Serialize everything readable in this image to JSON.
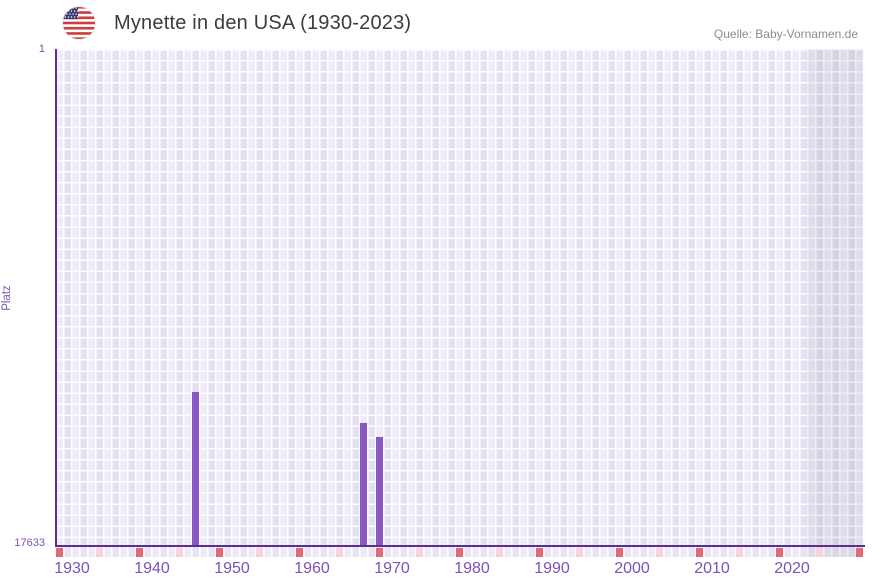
{
  "header": {
    "title": "Mynette in den USA (1930-2023)",
    "source": "Quelle: Baby-Vornamen.de",
    "flag_icon": "us-flag-icon"
  },
  "chart_data": {
    "type": "bar",
    "title": "Mynette in den USA (1930-2023)",
    "ylabel": "Platz",
    "y_axis": {
      "top_label": "1",
      "bottom_label": "17633",
      "min": 1,
      "max": 17633,
      "inverted": true
    },
    "x_axis": {
      "start_year": 1930,
      "end_year": 2030,
      "data_end_year": 2023,
      "tick_years": [
        1930,
        1940,
        1950,
        1960,
        1970,
        1980,
        1990,
        2000,
        2010,
        2020
      ],
      "minor_tick_years": [
        1935,
        1945,
        1955,
        1965,
        1975,
        1985,
        1995,
        2005,
        2015,
        2025
      ],
      "extra_major_tick_years": [
        2030
      ],
      "future_shade_start_year": 2024
    },
    "bars": [
      {
        "year": 1947,
        "platz": 12200
      },
      {
        "year": 1968,
        "platz": 13300
      },
      {
        "year": 1970,
        "platz": 13800
      }
    ],
    "legend": null,
    "grid": "cell-grid",
    "colors": {
      "bar": "#8a56c2",
      "axis": "#5b2d8e",
      "tick_label": "#7b52b8",
      "major_tick": "#e0697a",
      "minor_tick": "#f5d3dd",
      "grid_cell_a": "#efebf9",
      "grid_cell_b": "#e5e0f2",
      "future_overlay": "rgba(70,70,95,0.09)",
      "title_text": "#3c3c3c",
      "source_text": "#8b8b8b",
      "flag_red": "#cf3e3e",
      "flag_blue": "#3c3b6e"
    }
  }
}
